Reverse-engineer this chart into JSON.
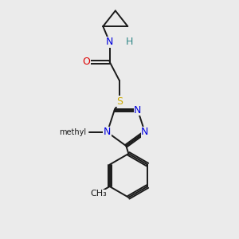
{
  "background_color": "#ebebeb",
  "bond_color": "#1a1a1a",
  "N_color": "#0000dd",
  "O_color": "#dd0000",
  "S_color": "#ccaa00",
  "H_color": "#338888",
  "lw": 1.4,
  "dpi": 100,
  "xlim": [
    0.55,
    2.45
  ],
  "ylim": [
    0.05,
    2.95
  ]
}
